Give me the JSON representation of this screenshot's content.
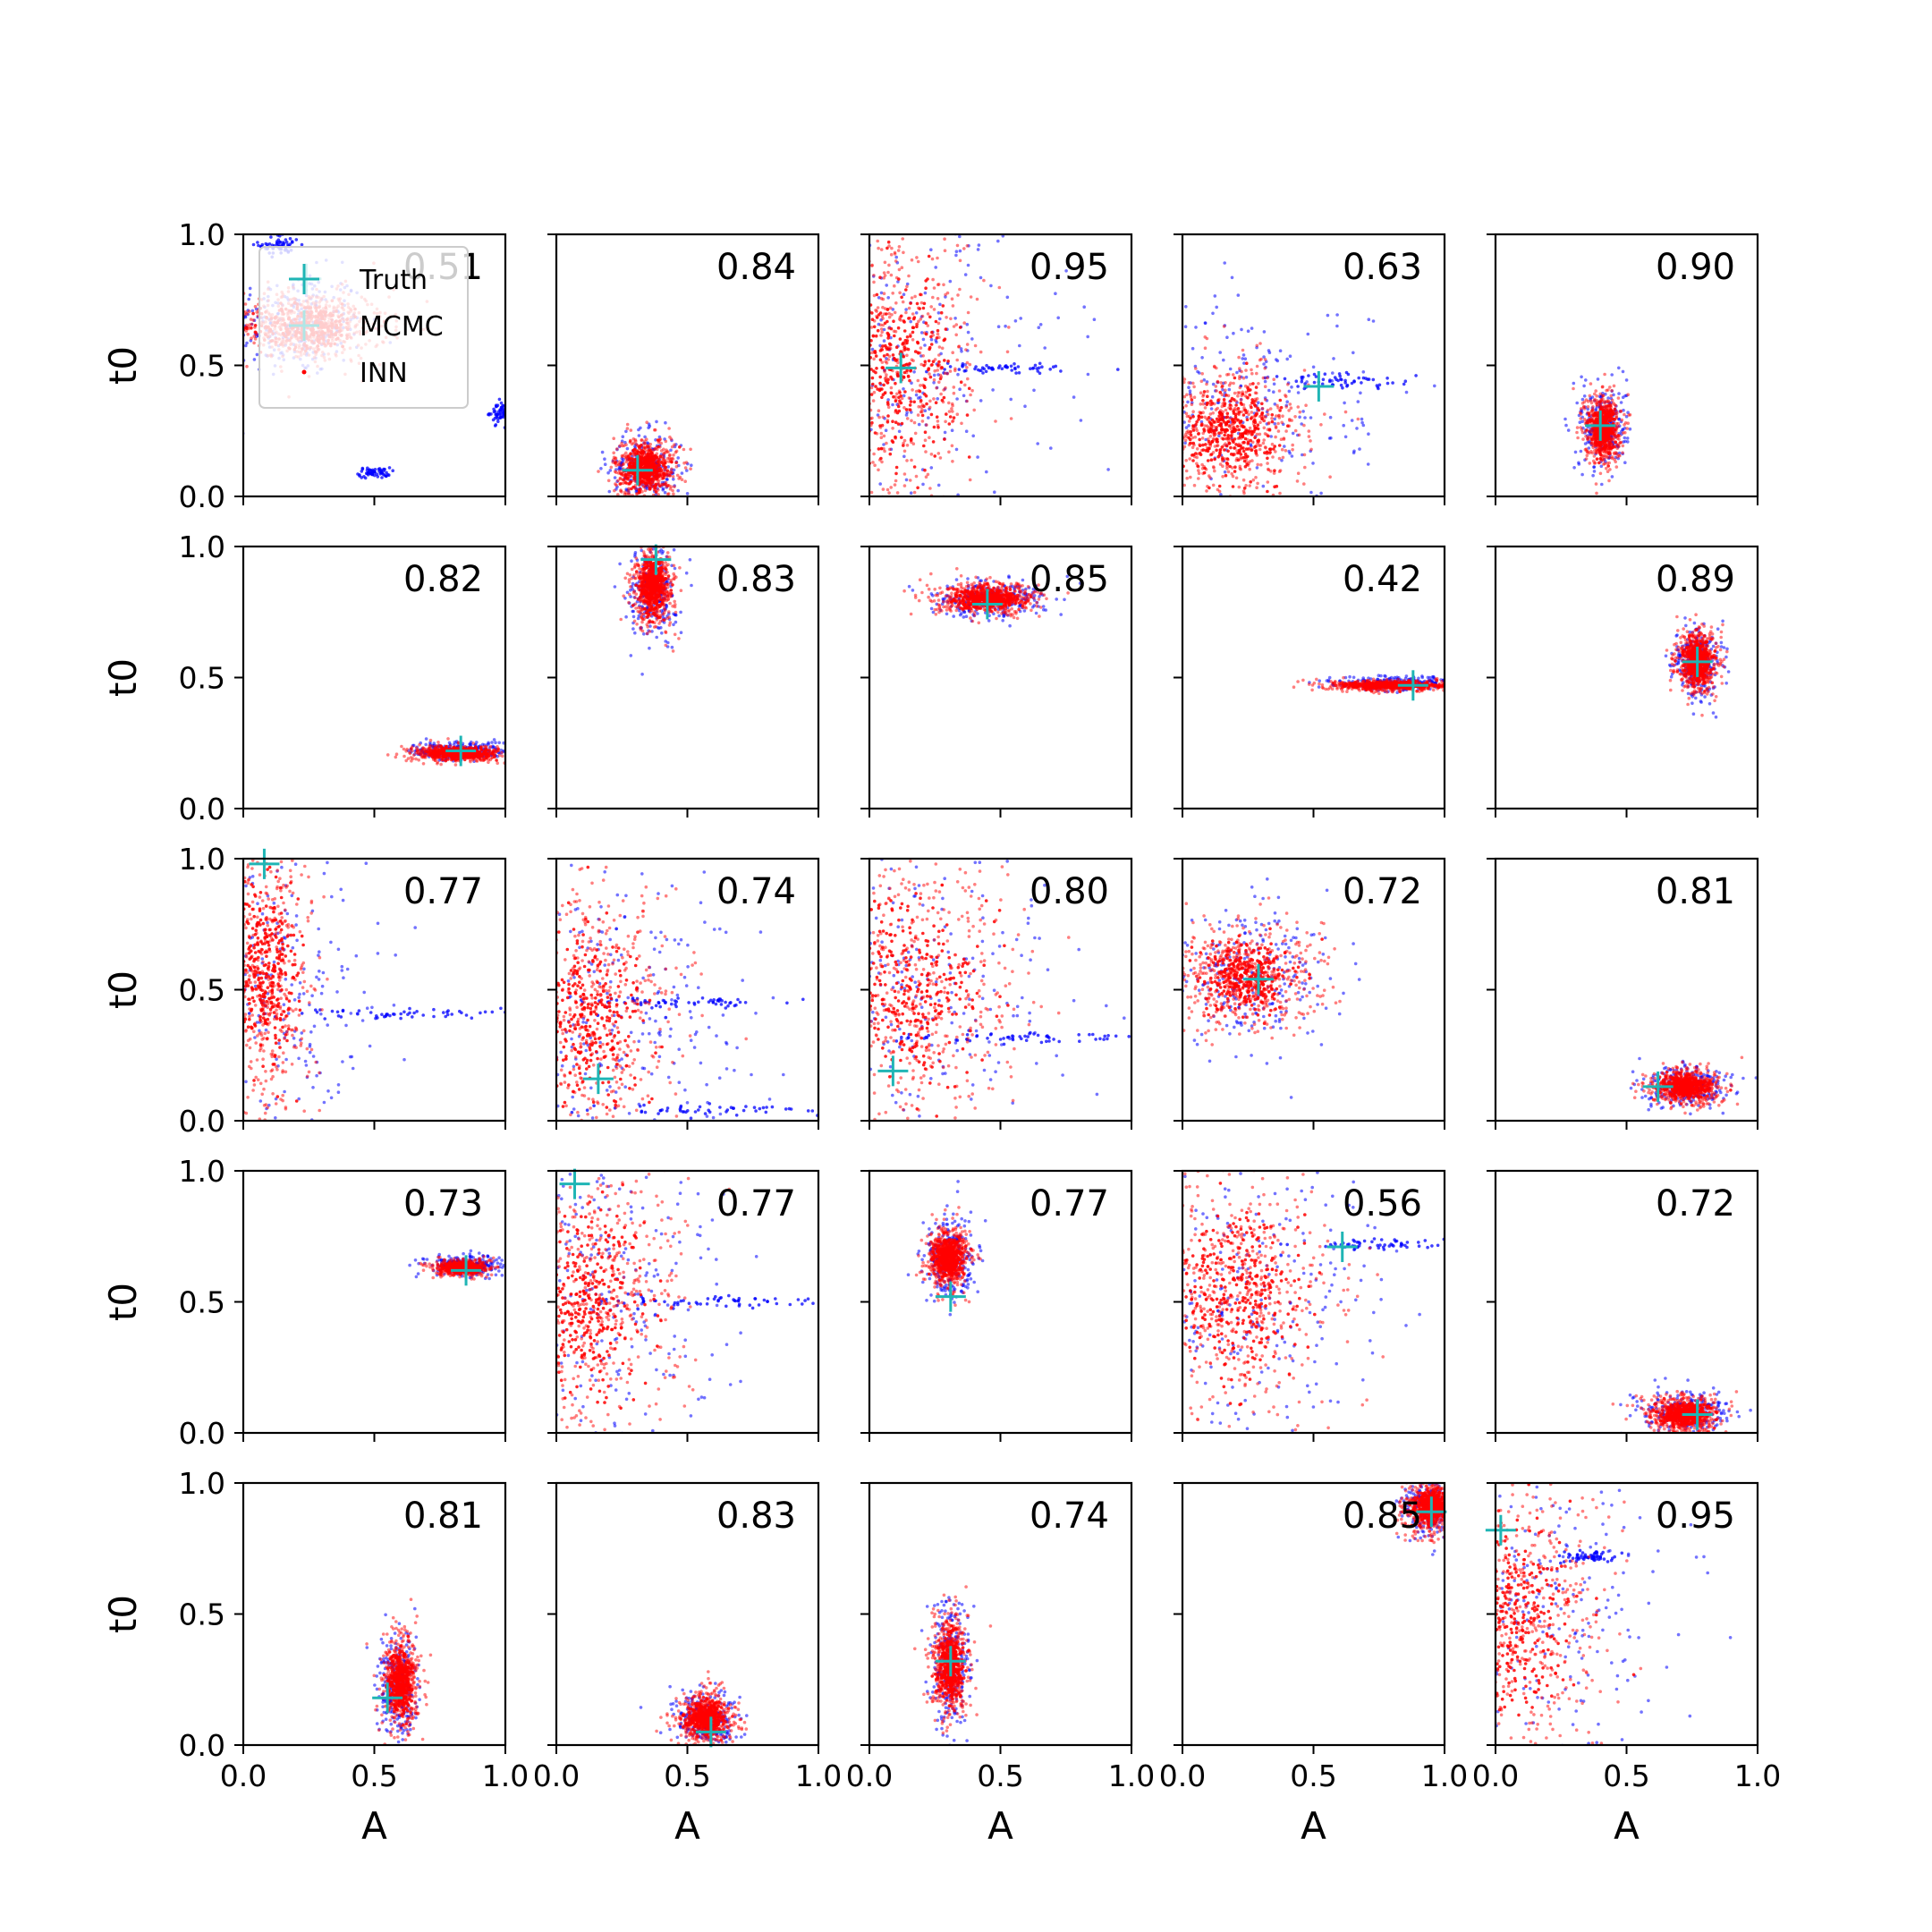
{
  "chart_data": {
    "type": "scatter",
    "rows": 5,
    "cols": 5,
    "xlabel": "A",
    "ylabel": "t0",
    "xlim": [
      0,
      1
    ],
    "ylim": [
      0,
      1
    ],
    "xticks": [
      "0.0",
      "0.5",
      "1.0"
    ],
    "yticks": [
      "0.0",
      "0.5",
      "1.0"
    ],
    "colors": {
      "mcmc": "#0000ff",
      "inn": "#ff0000",
      "truth": "#1fb5b5",
      "legend_mcmc": "#b0e6e6"
    },
    "legend": {
      "placement": "upper-left of first subplot",
      "entries": [
        {
          "key": "truth",
          "label": "Truth"
        },
        {
          "key": "mcmc",
          "label": "MCMC"
        },
        {
          "key": "inn",
          "label": "INN"
        }
      ]
    },
    "panels": [
      {
        "score": "0.51",
        "truth": [
          0.24,
          0.83
        ],
        "inn": [
          0.25,
          0.65,
          0.15,
          0.07
        ],
        "mcmc": [
          0.2,
          0.66,
          0.13,
          0.1
        ],
        "extra": [
          [
            0.14,
            0.96,
            0.04,
            0.02
          ],
          [
            0.5,
            0.09,
            0.03,
            0.01
          ],
          [
            0.98,
            0.32,
            0.02,
            0.02
          ]
        ]
      },
      {
        "score": "0.84",
        "truth": [
          0.31,
          0.1
        ],
        "inn": [
          0.34,
          0.11,
          0.06,
          0.06
        ],
        "mcmc": [
          0.34,
          0.1,
          0.07,
          0.07
        ]
      },
      {
        "score": "0.95",
        "truth": [
          0.12,
          0.49
        ],
        "inn": [
          0.1,
          0.5,
          0.18,
          0.28
        ],
        "mcmc": [
          0.15,
          0.5,
          0.3,
          0.3
        ],
        "extra": [
          [
            0.5,
            0.49,
            0.2,
            0.01
          ]
        ]
      },
      {
        "score": "0.63",
        "truth": [
          0.52,
          0.42
        ],
        "inn": [
          0.18,
          0.25,
          0.15,
          0.13
        ],
        "mcmc": [
          0.2,
          0.35,
          0.25,
          0.2
        ],
        "extra": [
          [
            0.62,
            0.44,
            0.15,
            0.015
          ]
        ]
      },
      {
        "score": "0.90",
        "truth": [
          0.4,
          0.27
        ],
        "inn": [
          0.41,
          0.26,
          0.035,
          0.07
        ],
        "mcmc": [
          0.41,
          0.27,
          0.045,
          0.08
        ]
      },
      {
        "score": "0.82",
        "truth": [
          0.83,
          0.22
        ],
        "inn": [
          0.82,
          0.21,
          0.09,
          0.015
        ],
        "mcmc": [
          0.83,
          0.22,
          0.09,
          0.018
        ]
      },
      {
        "score": "0.83",
        "truth": [
          0.38,
          0.95
        ],
        "inn": [
          0.37,
          0.85,
          0.04,
          0.08
        ],
        "mcmc": [
          0.37,
          0.84,
          0.045,
          0.1
        ]
      },
      {
        "score": "0.85",
        "truth": [
          0.45,
          0.78
        ],
        "inn": [
          0.45,
          0.8,
          0.1,
          0.03
        ],
        "mcmc": [
          0.45,
          0.8,
          0.11,
          0.035
        ]
      },
      {
        "score": "0.42",
        "truth": [
          0.88,
          0.47
        ],
        "inn": [
          0.8,
          0.47,
          0.12,
          0.01
        ],
        "mcmc": [
          0.82,
          0.48,
          0.12,
          0.012
        ]
      },
      {
        "score": "0.89",
        "truth": [
          0.77,
          0.56
        ],
        "inn": [
          0.77,
          0.56,
          0.04,
          0.06
        ],
        "mcmc": [
          0.77,
          0.56,
          0.045,
          0.07
        ]
      },
      {
        "score": "0.77",
        "truth": [
          0.08,
          0.98
        ],
        "inn": [
          0.08,
          0.55,
          0.1,
          0.3
        ],
        "mcmc": [
          0.1,
          0.5,
          0.2,
          0.3
        ],
        "extra": [
          [
            0.6,
            0.41,
            0.25,
            0.01
          ]
        ]
      },
      {
        "score": "0.74",
        "truth": [
          0.16,
          0.16
        ],
        "inn": [
          0.12,
          0.4,
          0.18,
          0.28
        ],
        "mcmc": [
          0.2,
          0.4,
          0.3,
          0.3
        ],
        "extra": [
          [
            0.6,
            0.04,
            0.3,
            0.01
          ],
          [
            0.55,
            0.45,
            0.18,
            0.01
          ]
        ]
      },
      {
        "score": "0.80",
        "truth": [
          0.09,
          0.19
        ],
        "inn": [
          0.15,
          0.5,
          0.22,
          0.3
        ],
        "mcmc": [
          0.2,
          0.5,
          0.3,
          0.3
        ],
        "extra": [
          [
            0.6,
            0.32,
            0.25,
            0.01
          ]
        ]
      },
      {
        "score": "0.72",
        "truth": [
          0.29,
          0.54
        ],
        "inn": [
          0.25,
          0.55,
          0.14,
          0.1
        ],
        "mcmc": [
          0.25,
          0.56,
          0.16,
          0.13
        ]
      },
      {
        "score": "0.81",
        "truth": [
          0.62,
          0.13
        ],
        "inn": [
          0.72,
          0.13,
          0.07,
          0.035
        ],
        "mcmc": [
          0.72,
          0.13,
          0.08,
          0.04
        ]
      },
      {
        "score": "0.73",
        "truth": [
          0.85,
          0.62
        ],
        "inn": [
          0.83,
          0.63,
          0.05,
          0.015
        ],
        "mcmc": [
          0.85,
          0.64,
          0.07,
          0.02
        ]
      },
      {
        "score": "0.77",
        "truth": [
          0.07,
          0.95
        ],
        "inn": [
          0.12,
          0.5,
          0.18,
          0.3
        ],
        "mcmc": [
          0.15,
          0.5,
          0.25,
          0.3
        ],
        "extra": [
          [
            0.55,
            0.5,
            0.2,
            0.01
          ]
        ]
      },
      {
        "score": "0.77",
        "truth": [
          0.31,
          0.52
        ],
        "inn": [
          0.3,
          0.67,
          0.04,
          0.06
        ],
        "mcmc": [
          0.31,
          0.66,
          0.05,
          0.08
        ]
      },
      {
        "score": "0.56",
        "truth": [
          0.61,
          0.71
        ],
        "inn": [
          0.2,
          0.55,
          0.2,
          0.25
        ],
        "mcmc": [
          0.25,
          0.55,
          0.28,
          0.3
        ],
        "extra": [
          [
            0.75,
            0.72,
            0.2,
            0.01
          ]
        ]
      },
      {
        "score": "0.72",
        "truth": [
          0.77,
          0.07
        ],
        "inn": [
          0.72,
          0.07,
          0.07,
          0.035
        ],
        "mcmc": [
          0.72,
          0.08,
          0.08,
          0.04
        ]
      },
      {
        "score": "0.81",
        "truth": [
          0.55,
          0.18
        ],
        "inn": [
          0.6,
          0.24,
          0.035,
          0.09
        ],
        "mcmc": [
          0.59,
          0.22,
          0.04,
          0.1
        ]
      },
      {
        "score": "0.83",
        "truth": [
          0.59,
          0.05
        ],
        "inn": [
          0.57,
          0.1,
          0.05,
          0.05
        ],
        "mcmc": [
          0.57,
          0.1,
          0.06,
          0.06
        ]
      },
      {
        "score": "0.74",
        "truth": [
          0.31,
          0.32
        ],
        "inn": [
          0.31,
          0.3,
          0.035,
          0.1
        ],
        "mcmc": [
          0.31,
          0.29,
          0.04,
          0.12
        ]
      },
      {
        "score": "0.85",
        "truth": [
          0.95,
          0.89
        ],
        "inn": [
          0.95,
          0.91,
          0.05,
          0.05
        ],
        "mcmc": [
          0.95,
          0.9,
          0.06,
          0.06
        ]
      },
      {
        "score": "0.95",
        "truth": [
          0.02,
          0.82
        ],
        "inn": [
          0.08,
          0.5,
          0.18,
          0.3
        ],
        "mcmc": [
          0.12,
          0.5,
          0.28,
          0.3
        ],
        "extra": [
          [
            0.35,
            0.72,
            0.06,
            0.01
          ]
        ]
      }
    ]
  }
}
